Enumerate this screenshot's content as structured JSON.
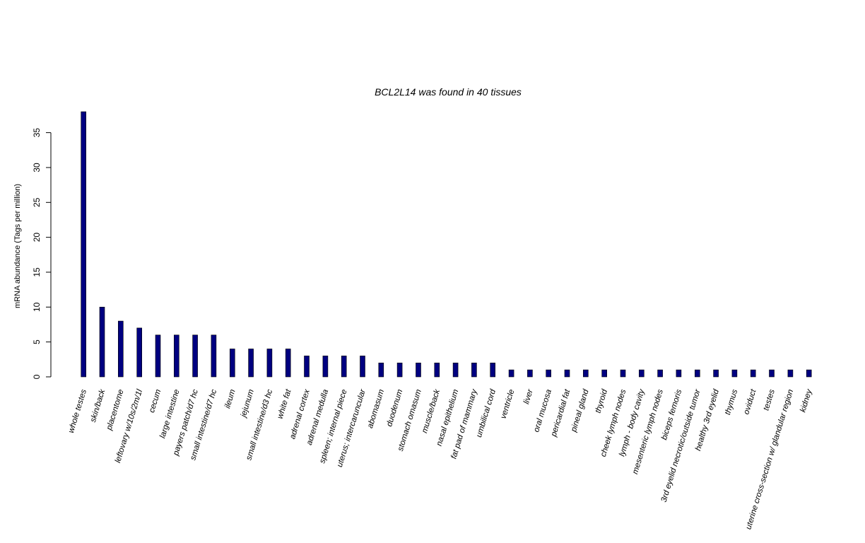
{
  "chart_data": {
    "type": "bar",
    "title": "BCL2L14  was found in  40  tissues",
    "xlabel": "",
    "ylabel": "mRNA abundance (Tags per million)",
    "ylim": [
      0,
      38
    ],
    "yticks": [
      0,
      5,
      10,
      15,
      20,
      25,
      30,
      35
    ],
    "bar_color": "#000080",
    "grid": false,
    "categories": [
      "whole testes",
      "skin/back",
      "placentome",
      "leftovary w/10s/2m/1l",
      "cecum",
      "large intestine",
      "payers patch/d7 hc",
      "small intestine/d7 hc",
      "ileum",
      "jejunum",
      "small intestine/d3 hc",
      "white fat",
      "adrenal cortex",
      "adrenal medulla",
      "spleen; internal piece",
      "uterus; intercaruncular",
      "abomasum",
      "duodenum",
      "stomach omasum",
      "muscle/back",
      "nasal epithelium",
      "fat pad of mammary",
      "umbilical cord",
      "ventricle",
      "liver",
      "oral mucosa",
      "pericardial fat",
      "pineal gland",
      "thyroid",
      "cheek lymph nodes",
      "lymph - body cavity",
      "mesenteric lymph nodes",
      "biceps femoris",
      "3rd eyelid necrotic/outside tumor",
      "healthy 3rd eyelid",
      "thymus",
      "oviduct",
      "testes",
      "uterine cross-section w/ glandular region",
      "kidney"
    ],
    "values": [
      38,
      10,
      8,
      7,
      6,
      6,
      6,
      6,
      4,
      4,
      4,
      4,
      3,
      3,
      3,
      3,
      2,
      2,
      2,
      2,
      2,
      2,
      2,
      1,
      1,
      1,
      1,
      1,
      1,
      1,
      1,
      1,
      1,
      1,
      1,
      1,
      1,
      1,
      1,
      1
    ]
  }
}
